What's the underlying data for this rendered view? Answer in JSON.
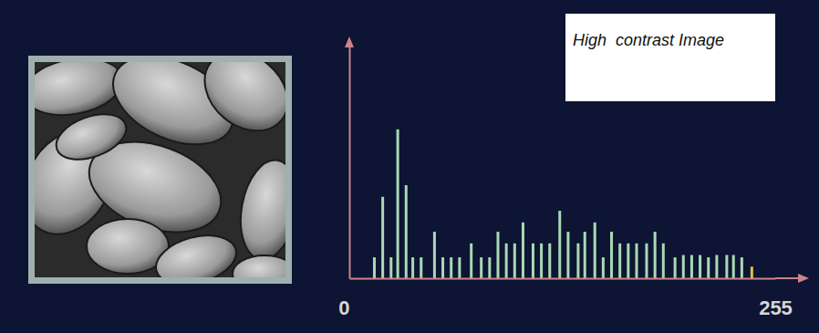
{
  "chart_data": {
    "type": "bar",
    "title": "High  contrast Image",
    "x": [
      15,
      20,
      25,
      29,
      34,
      38,
      43,
      51,
      56,
      61,
      66,
      73,
      79,
      84,
      89,
      94,
      99,
      104,
      110,
      115,
      120,
      126,
      131,
      137,
      141,
      147,
      152,
      157,
      162,
      167,
      172,
      178,
      183,
      188,
      195,
      200,
      205,
      210,
      215,
      220,
      226,
      230,
      235,
      241
    ],
    "values": [
      9,
      35,
      9,
      64,
      40,
      9,
      9,
      20,
      9,
      9,
      9,
      15,
      9,
      9,
      20,
      15,
      15,
      24,
      15,
      15,
      15,
      29,
      20,
      15,
      20,
      24,
      9,
      20,
      15,
      15,
      15,
      15,
      20,
      15,
      9,
      10,
      10,
      10,
      9,
      10,
      10,
      10,
      9,
      5
    ],
    "colors": [
      "#a9d9b4",
      "#a9d9b4",
      "#a9d9b4",
      "#a9d9b4",
      "#a9d9b4",
      "#a9d9b4",
      "#a9d9b4",
      "#a9d9b4",
      "#a9d9b4",
      "#a9d9b4",
      "#a9d9b4",
      "#a9d9b4",
      "#a9d9b4",
      "#a9d9b4",
      "#a9d9b4",
      "#a9d9b4",
      "#a9d9b4",
      "#a9d9b4",
      "#a9d9b4",
      "#a9d9b4",
      "#a9d9b4",
      "#a9d9b4",
      "#a9d9b4",
      "#a9d9b4",
      "#a9d9b4",
      "#a9d9b4",
      "#a9d9b4",
      "#a9d9b4",
      "#a9d9b4",
      "#a9d9b4",
      "#a9d9b4",
      "#a9d9b4",
      "#a9d9b4",
      "#a9d9b4",
      "#a9d9b4",
      "#a9d9b4",
      "#a9d9b4",
      "#a9d9b4",
      "#a9d9b4",
      "#a9d9b4",
      "#a9d9b4",
      "#a9d9b4",
      "#a9d9b4",
      "#d9c24a"
    ],
    "xlim": [
      0,
      255
    ],
    "xticks": [
      0,
      255
    ],
    "ylim": [
      0,
      100
    ],
    "tick_labels": "x"
  }
}
